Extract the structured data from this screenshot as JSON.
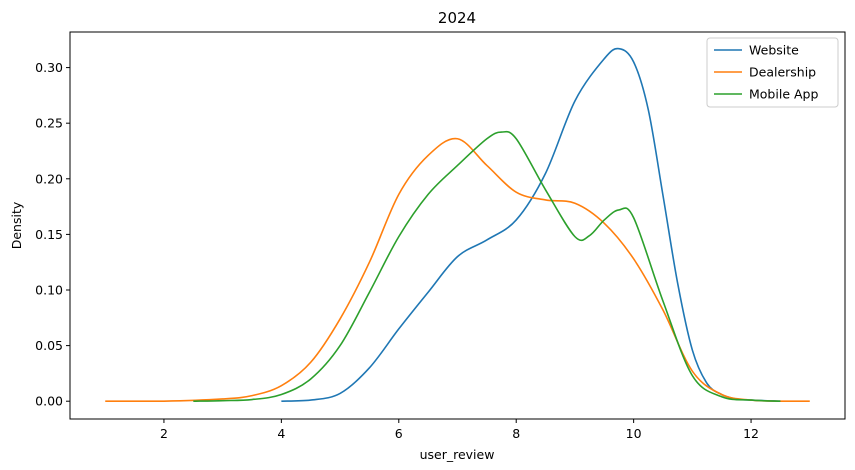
{
  "chart_data": {
    "type": "line",
    "title": "2024",
    "xlabel": "user_review",
    "ylabel": "Density",
    "xlim": [
      0.4,
      13.6
    ],
    "ylim": [
      -0.016,
      0.332
    ],
    "x_ticks": [
      2,
      4,
      6,
      8,
      10,
      12
    ],
    "x_tick_labels": [
      "2",
      "4",
      "6",
      "8",
      "10",
      "12"
    ],
    "y_ticks": [
      0.0,
      0.05,
      0.1,
      0.15,
      0.2,
      0.25,
      0.3
    ],
    "y_tick_labels": [
      "0.00",
      "0.05",
      "0.10",
      "0.15",
      "0.20",
      "0.25",
      "0.30"
    ],
    "grid": false,
    "legend_position": "top-right",
    "series": [
      {
        "name": "Website",
        "color": "#1f77b4",
        "x": [
          4.0,
          4.5,
          5.0,
          5.5,
          6.0,
          6.5,
          7.0,
          7.5,
          8.0,
          8.5,
          9.0,
          9.5,
          9.75,
          10.0,
          10.25,
          10.5,
          10.75,
          11.0,
          11.25,
          11.5,
          11.75,
          12.0,
          12.5
        ],
        "y": [
          0.0,
          0.001,
          0.007,
          0.03,
          0.065,
          0.098,
          0.13,
          0.145,
          0.163,
          0.205,
          0.27,
          0.308,
          0.317,
          0.305,
          0.262,
          0.185,
          0.106,
          0.046,
          0.016,
          0.006,
          0.002,
          0.001,
          0.0
        ]
      },
      {
        "name": "Dealership",
        "color": "#ff7f0e",
        "x": [
          1.0,
          2.0,
          3.0,
          3.5,
          4.0,
          4.5,
          5.0,
          5.5,
          6.0,
          6.5,
          7.0,
          7.5,
          8.0,
          8.5,
          9.0,
          9.5,
          10.0,
          10.5,
          11.0,
          11.5,
          12.0,
          12.5,
          13.0
        ],
        "y": [
          0.0,
          0.0,
          0.002,
          0.005,
          0.014,
          0.035,
          0.074,
          0.125,
          0.186,
          0.221,
          0.236,
          0.212,
          0.188,
          0.181,
          0.178,
          0.16,
          0.128,
          0.082,
          0.027,
          0.006,
          0.001,
          0.0,
          0.0
        ]
      },
      {
        "name": "Mobile App",
        "color": "#2ca02c",
        "x": [
          2.5,
          3.0,
          3.5,
          4.0,
          4.5,
          5.0,
          5.5,
          6.0,
          6.5,
          7.0,
          7.5,
          7.75,
          8.0,
          8.5,
          9.0,
          9.25,
          9.5,
          9.75,
          10.0,
          10.5,
          11.0,
          11.5,
          12.0,
          12.5
        ],
        "y": [
          0.0,
          0.0005,
          0.0015,
          0.006,
          0.02,
          0.05,
          0.098,
          0.148,
          0.186,
          0.212,
          0.236,
          0.242,
          0.236,
          0.19,
          0.148,
          0.149,
          0.163,
          0.172,
          0.165,
          0.09,
          0.023,
          0.004,
          0.001,
          0.0
        ]
      }
    ]
  }
}
